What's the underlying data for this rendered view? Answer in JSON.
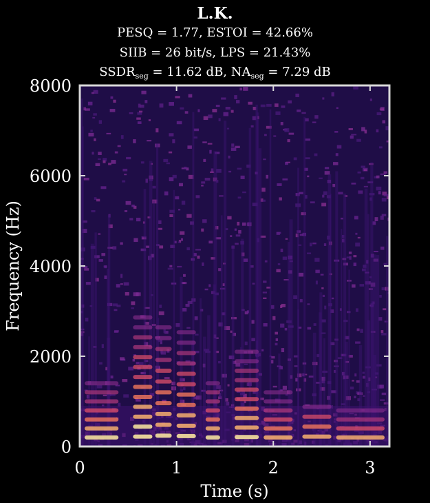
{
  "title": "L.K.",
  "metrics": {
    "line1": "PESQ = 1.77, ESTOI = 42.66%",
    "line2": "SIIB = 26 bit/s, LPS = 21.43%",
    "ssdr_name": "SSDR",
    "ssdr_sub": "seg",
    "ssdr_value": " = 11.62 dB, ",
    "na_name": "NA",
    "na_sub": "seg",
    "na_value": " = 7.29 dB"
  },
  "chart_data": {
    "type": "heatmap",
    "title": "L.K.",
    "xlabel": "Time (s)",
    "ylabel": "Frequency (Hz)",
    "xlim": [
      0,
      3.2
    ],
    "ylim": [
      0,
      8000
    ],
    "xticks": [
      0,
      1,
      2,
      3
    ],
    "yticks": [
      0,
      2000,
      4000,
      6000,
      8000
    ],
    "colormap": "magma",
    "grid": false,
    "description_of_content": "spectrogram",
    "voiced_segments": [
      {
        "t_start": 0.05,
        "t_end": 0.4,
        "f0_hz": 200,
        "harmonics_up_to_hz": 1500
      },
      {
        "t_start": 0.55,
        "t_end": 0.75,
        "f0_hz": 220,
        "harmonics_up_to_hz": 3000
      },
      {
        "t_start": 0.78,
        "t_end": 0.95,
        "f0_hz": 240,
        "harmonics_up_to_hz": 2800
      },
      {
        "t_start": 1.0,
        "t_end": 1.2,
        "f0_hz": 230,
        "harmonics_up_to_hz": 2600
      },
      {
        "t_start": 1.3,
        "t_end": 1.45,
        "f0_hz": 200,
        "harmonics_up_to_hz": 1500
      },
      {
        "t_start": 1.6,
        "t_end": 1.85,
        "f0_hz": 210,
        "harmonics_up_to_hz": 2100
      },
      {
        "t_start": 1.9,
        "t_end": 2.2,
        "f0_hz": 200,
        "harmonics_up_to_hz": 1200
      },
      {
        "t_start": 2.3,
        "t_end": 2.6,
        "f0_hz": 220,
        "harmonics_up_to_hz": 1000
      },
      {
        "t_start": 2.65,
        "t_end": 3.15,
        "f0_hz": 200,
        "harmonics_up_to_hz": 800
      }
    ],
    "colors": {
      "background": "#000000",
      "plot_bg": "#1f0d47",
      "axis": "#d9d9d9"
    }
  }
}
